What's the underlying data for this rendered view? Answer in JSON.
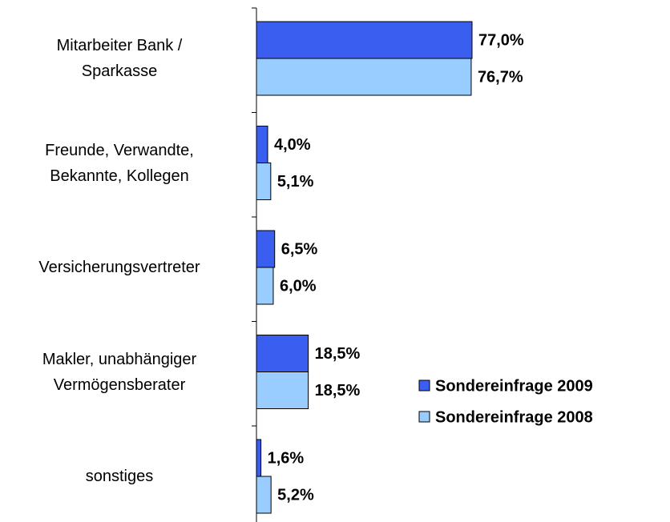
{
  "chart_data": {
    "type": "barh",
    "categories": [
      "Mitarbeiter Bank /\nSparkasse",
      "Freunde, Verwandte,\nBekannte, Kollegen",
      "Versicherungsvertreter",
      "Makler, unabhängiger\nVermögensberater",
      "sonstiges"
    ],
    "series": [
      {
        "name": "Sondereinfrage 2009",
        "color": "#3a5ff0",
        "values": [
          77.0,
          4.0,
          6.5,
          18.5,
          1.6
        ],
        "value_labels": [
          "77,0%",
          "4,0%",
          "6,5%",
          "18,5%",
          "1,6%"
        ]
      },
      {
        "name": "Sondereinfrage 2008",
        "color": "#99ccff",
        "values": [
          76.7,
          5.1,
          6.0,
          18.5,
          5.2
        ],
        "value_labels": [
          "76,7%",
          "5,1%",
          "6,0%",
          "18,5%",
          "5,2%"
        ]
      }
    ],
    "legend": "right"
  }
}
